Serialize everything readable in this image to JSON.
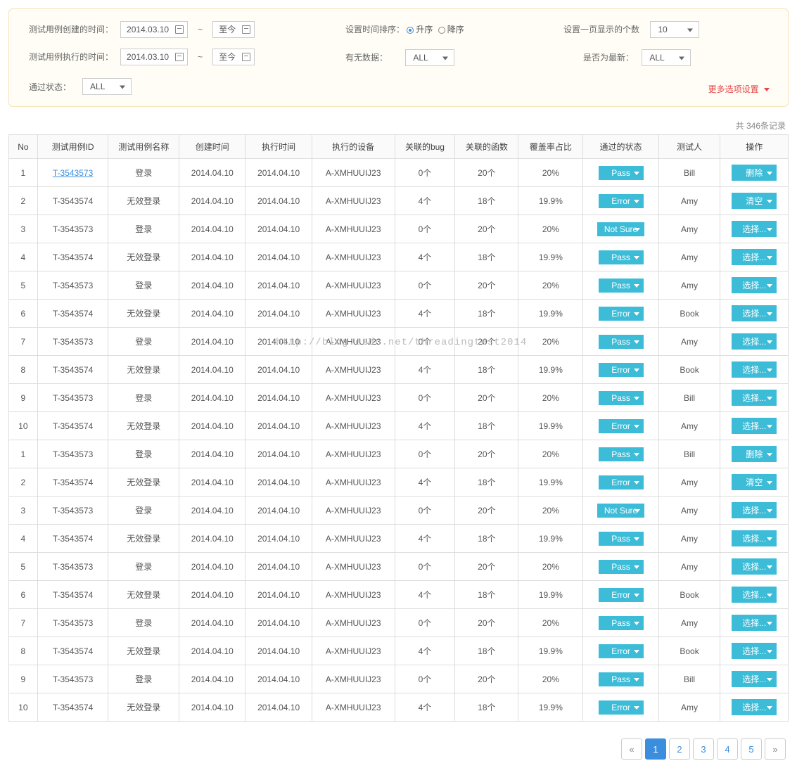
{
  "colors": {
    "panel_border": "#f6e3b8",
    "panel_bg": "#fffdf6",
    "cell_border": "#dddddd",
    "header_bg": "#fafafa",
    "link": "#3b8ede",
    "pill": "#3dbcd8",
    "danger": "#e64545"
  },
  "filters": {
    "create_label": "测试用例创建的时间：",
    "exec_label": "测试用例执行的时间：",
    "date_from": "2014.03.10",
    "date_to": "至今",
    "sort_label": "设置时间排序：",
    "sort_asc": "升序",
    "sort_desc": "降序",
    "per_page_label": "设置一页显示的个数",
    "per_page_value": "10",
    "has_data_label": "有无数据：",
    "has_data_value": "ALL",
    "is_latest_label": "是否为最新：",
    "is_latest_value": "ALL",
    "pass_state_label": "通过状态：",
    "pass_state_value": "ALL",
    "more_options": "更多选项设置"
  },
  "summary": {
    "total_text": "共 346条记录"
  },
  "table": {
    "headers": {
      "no": "No",
      "id": "测试用例ID",
      "name": "测试用例名称",
      "ctime": "创建时间",
      "etime": "执行时间",
      "device": "执行的设备",
      "bug": "关联的bug",
      "func": "关联的函数",
      "cov": "覆盖率占比",
      "status": "通过的状态",
      "tester": "测试人",
      "op": "操作"
    },
    "rows": [
      {
        "no": "1",
        "id": "T-3543573",
        "id_link": true,
        "name": "登录",
        "ctime": "2014.04.10",
        "etime": "2014.04.10",
        "dev": "A-XMHUUIJ23",
        "bug": "0个",
        "func": "20个",
        "cov": "20%",
        "status": "Pass",
        "tester": "Bill",
        "op": "删除"
      },
      {
        "no": "2",
        "id": "T-3543574",
        "name": "无效登录",
        "ctime": "2014.04.10",
        "etime": "2014.04.10",
        "dev": "A-XMHUUIJ23",
        "bug": "4个",
        "func": "18个",
        "cov": "19.9%",
        "status": "Error",
        "tester": "Amy",
        "op": "清空"
      },
      {
        "no": "3",
        "id": "T-3543573",
        "name": "登录",
        "ctime": "2014.04.10",
        "etime": "2014.04.10",
        "dev": "A-XMHUUIJ23",
        "bug": "0个",
        "func": "20个",
        "cov": "20%",
        "status": "Not Sure",
        "tester": "Amy",
        "op": "选择..."
      },
      {
        "no": "4",
        "id": "T-3543574",
        "name": "无效登录",
        "ctime": "2014.04.10",
        "etime": "2014.04.10",
        "dev": "A-XMHUUIJ23",
        "bug": "4个",
        "func": "18个",
        "cov": "19.9%",
        "status": "Pass",
        "tester": "Amy",
        "op": "选择..."
      },
      {
        "no": "5",
        "id": "T-3543573",
        "name": "登录",
        "ctime": "2014.04.10",
        "etime": "2014.04.10",
        "dev": "A-XMHUUIJ23",
        "bug": "0个",
        "func": "20个",
        "cov": "20%",
        "status": "Pass",
        "tester": "Amy",
        "op": "选择..."
      },
      {
        "no": "6",
        "id": "T-3543574",
        "name": "无效登录",
        "ctime": "2014.04.10",
        "etime": "2014.04.10",
        "dev": "A-XMHUUIJ23",
        "bug": "4个",
        "func": "18个",
        "cov": "19.9%",
        "status": "Error",
        "tester": "Book",
        "op": "选择..."
      },
      {
        "no": "7",
        "id": "T-3543573",
        "name": "登录",
        "ctime": "2014.04.10",
        "etime": "2014.04.10",
        "dev": "A-XMHUUIJ23",
        "bug": "0个",
        "func": "20个",
        "cov": "20%",
        "status": "Pass",
        "tester": "Amy",
        "op": "选择..."
      },
      {
        "no": "8",
        "id": "T-3543574",
        "name": "无效登录",
        "ctime": "2014.04.10",
        "etime": "2014.04.10",
        "dev": "A-XMHUUIJ23",
        "bug": "4个",
        "func": "18个",
        "cov": "19.9%",
        "status": "Error",
        "tester": "Book",
        "op": "选择..."
      },
      {
        "no": "9",
        "id": "T-3543573",
        "name": "登录",
        "ctime": "2014.04.10",
        "etime": "2014.04.10",
        "dev": "A-XMHUUIJ23",
        "bug": "0个",
        "func": "20个",
        "cov": "20%",
        "status": "Pass",
        "tester": "Bill",
        "op": "选择..."
      },
      {
        "no": "10",
        "id": "T-3543574",
        "name": "无效登录",
        "ctime": "2014.04.10",
        "etime": "2014.04.10",
        "dev": "A-XMHUUIJ23",
        "bug": "4个",
        "func": "18个",
        "cov": "19.9%",
        "status": "Error",
        "tester": "Amy",
        "op": "选择..."
      },
      {
        "no": "1",
        "id": "T-3543573",
        "name": "登录",
        "ctime": "2014.04.10",
        "etime": "2014.04.10",
        "dev": "A-XMHUUIJ23",
        "bug": "0个",
        "func": "20个",
        "cov": "20%",
        "status": "Pass",
        "tester": "Bill",
        "op": "删除"
      },
      {
        "no": "2",
        "id": "T-3543574",
        "name": "无效登录",
        "ctime": "2014.04.10",
        "etime": "2014.04.10",
        "dev": "A-XMHUUIJ23",
        "bug": "4个",
        "func": "18个",
        "cov": "19.9%",
        "status": "Error",
        "tester": "Amy",
        "op": "清空"
      },
      {
        "no": "3",
        "id": "T-3543573",
        "name": "登录",
        "ctime": "2014.04.10",
        "etime": "2014.04.10",
        "dev": "A-XMHUUIJ23",
        "bug": "0个",
        "func": "20个",
        "cov": "20%",
        "status": "Not Sure",
        "tester": "Amy",
        "op": "选择..."
      },
      {
        "no": "4",
        "id": "T-3543574",
        "name": "无效登录",
        "ctime": "2014.04.10",
        "etime": "2014.04.10",
        "dev": "A-XMHUUIJ23",
        "bug": "4个",
        "func": "18个",
        "cov": "19.9%",
        "status": "Pass",
        "tester": "Amy",
        "op": "选择..."
      },
      {
        "no": "5",
        "id": "T-3543573",
        "name": "登录",
        "ctime": "2014.04.10",
        "etime": "2014.04.10",
        "dev": "A-XMHUUIJ23",
        "bug": "0个",
        "func": "20个",
        "cov": "20%",
        "status": "Pass",
        "tester": "Amy",
        "op": "选择..."
      },
      {
        "no": "6",
        "id": "T-3543574",
        "name": "无效登录",
        "ctime": "2014.04.10",
        "etime": "2014.04.10",
        "dev": "A-XMHUUIJ23",
        "bug": "4个",
        "func": "18个",
        "cov": "19.9%",
        "status": "Error",
        "tester": "Book",
        "op": "选择..."
      },
      {
        "no": "7",
        "id": "T-3543573",
        "name": "登录",
        "ctime": "2014.04.10",
        "etime": "2014.04.10",
        "dev": "A-XMHUUIJ23",
        "bug": "0个",
        "func": "20个",
        "cov": "20%",
        "status": "Pass",
        "tester": "Amy",
        "op": "选择..."
      },
      {
        "no": "8",
        "id": "T-3543574",
        "name": "无效登录",
        "ctime": "2014.04.10",
        "etime": "2014.04.10",
        "dev": "A-XMHUUIJ23",
        "bug": "4个",
        "func": "18个",
        "cov": "19.9%",
        "status": "Error",
        "tester": "Book",
        "op": "选择..."
      },
      {
        "no": "9",
        "id": "T-3543573",
        "name": "登录",
        "ctime": "2014.04.10",
        "etime": "2014.04.10",
        "dev": "A-XMHUUIJ23",
        "bug": "0个",
        "func": "20个",
        "cov": "20%",
        "status": "Pass",
        "tester": "Bill",
        "op": "选择..."
      },
      {
        "no": "10",
        "id": "T-3543574",
        "name": "无效登录",
        "ctime": "2014.04.10",
        "etime": "2014.04.10",
        "dev": "A-XMHUUIJ23",
        "bug": "4个",
        "func": "18个",
        "cov": "19.9%",
        "status": "Error",
        "tester": "Amy",
        "op": "选择..."
      }
    ]
  },
  "pagination": {
    "prev": "«",
    "next": "»",
    "pages": [
      "1",
      "2",
      "3",
      "4",
      "5"
    ],
    "active_index": 0
  },
  "watermark": "http://blog.csdn.net/threadingtest2014"
}
